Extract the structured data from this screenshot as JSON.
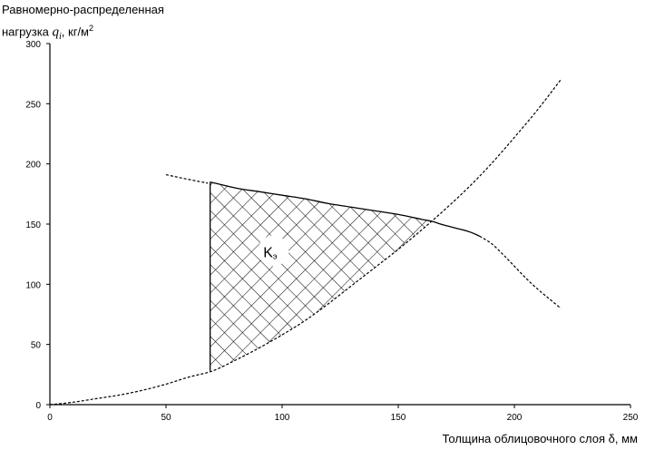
{
  "chart_data": {
    "type": "line",
    "title": "",
    "ylabel": {
      "line1": "Равномерно-распределенная",
      "prefix": "нагрузка ",
      "var": "q",
      "sub": "i",
      "unit": ", кг/м",
      "sup": "2"
    },
    "xlabel": "Толщина облицовочного  слоя δ, мм",
    "xlim": [
      0,
      250
    ],
    "ylim": [
      0,
      300
    ],
    "xticks": [
      0,
      50,
      100,
      150,
      200,
      250
    ],
    "yticks": [
      0,
      50,
      100,
      150,
      200,
      250,
      300
    ],
    "grid": false,
    "series": [
      {
        "x": [
          0,
          10,
          20,
          30,
          40,
          50,
          60,
          70,
          80,
          90,
          100,
          110,
          120,
          130,
          140,
          150,
          160,
          170,
          180,
          190,
          200,
          210,
          220
        ],
        "values": [
          0,
          2,
          5,
          8,
          12,
          17,
          23,
          28,
          37,
          47,
          58,
          70,
          84,
          99,
          114,
          129,
          145,
          162,
          180,
          200,
          222,
          245,
          270
        ],
        "style": "dashed"
      },
      {
        "x": [
          50,
          60,
          68,
          69,
          80,
          90,
          100,
          110,
          120,
          130,
          140,
          150,
          160,
          165,
          170,
          180,
          185,
          190,
          195,
          200,
          205,
          210,
          215,
          220
        ],
        "values": [
          191,
          187,
          184,
          185,
          180,
          177,
          174,
          171,
          167,
          164,
          161,
          158,
          154,
          152,
          149,
          144,
          140,
          134,
          125,
          115,
          105,
          96,
          88,
          80
        ],
        "style": "mixed"
      }
    ],
    "vertical_line": {
      "x": 69,
      "y_from": 28,
      "y_to": 185
    },
    "region": {
      "label_main": "K",
      "label_sub": "э",
      "label_at": {
        "x": 95,
        "y": 127
      },
      "hatch": "crosshatch"
    }
  }
}
